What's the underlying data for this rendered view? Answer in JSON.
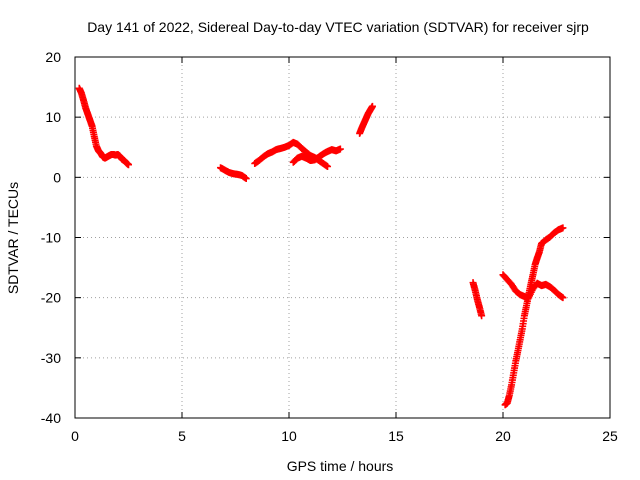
{
  "chart_data": {
    "type": "scatter",
    "title": "Day 141 of 2022, Sidereal Day-to-day VTEC variation (SDTVAR) for receiver sjrp",
    "xlabel": "GPS time / hours",
    "ylabel": "SDTVAR / TECUs",
    "xlim": [
      0,
      25
    ],
    "ylim": [
      -40,
      20
    ],
    "xticks": [
      0,
      5,
      10,
      15,
      20,
      25
    ],
    "yticks": [
      -40,
      -30,
      -20,
      -10,
      0,
      10,
      20
    ],
    "grid": true,
    "marker": "+",
    "color": "#ff0000",
    "series": [
      {
        "x": [
          0.2,
          0.3,
          0.4,
          0.5,
          0.6,
          0.7,
          0.8,
          0.9,
          1.0,
          1.1,
          1.2,
          1.3,
          1.4,
          1.5,
          1.6,
          1.7,
          1.8,
          1.9,
          2.0,
          2.1,
          2.2,
          2.3,
          2.4,
          2.5
        ],
        "y": [
          14.8,
          14.0,
          12.8,
          11.5,
          10.5,
          9.5,
          8.5,
          6.8,
          5.2,
          4.4,
          4.0,
          3.4,
          3.2,
          3.4,
          3.6,
          3.8,
          3.8,
          3.7,
          3.8,
          3.5,
          3.0,
          2.8,
          2.4,
          2.1
        ]
      },
      {
        "x": [
          6.8,
          7.0,
          7.2,
          7.4,
          7.6,
          7.8,
          8.0
        ],
        "y": [
          1.6,
          1.2,
          0.8,
          0.6,
          0.5,
          0.3,
          -0.2
        ]
      },
      {
        "x": [
          8.4,
          8.6,
          8.8,
          9.0,
          9.2,
          9.4,
          9.6,
          9.8,
          10.0,
          10.2,
          10.4,
          10.6,
          10.8,
          11.0,
          11.2,
          11.4,
          11.6,
          11.8
        ],
        "y": [
          2.3,
          2.8,
          3.4,
          3.9,
          4.2,
          4.6,
          4.8,
          5.0,
          5.3,
          5.8,
          5.5,
          4.8,
          4.2,
          3.6,
          3.3,
          2.8,
          2.3,
          1.8
        ]
      },
      {
        "x": [
          10.2,
          10.4,
          10.6,
          10.8,
          11.0,
          11.2,
          11.4,
          11.6,
          11.8,
          12.0,
          12.2,
          12.4
        ],
        "y": [
          2.5,
          3.2,
          3.5,
          3.2,
          2.8,
          2.9,
          3.4,
          3.9,
          4.3,
          4.6,
          4.4,
          4.7
        ]
      },
      {
        "x": [
          13.3,
          13.4,
          13.5,
          13.6,
          13.7,
          13.8,
          13.9
        ],
        "y": [
          7.3,
          8.2,
          9.0,
          9.8,
          10.6,
          11.2,
          11.8
        ]
      },
      {
        "x": [
          18.6,
          18.7,
          18.8,
          18.9,
          19.0
        ],
        "y": [
          -17.5,
          -18.8,
          -20.3,
          -21.6,
          -23.0
        ]
      },
      {
        "x": [
          20.0,
          20.2,
          20.4,
          20.6,
          20.8,
          21.0,
          21.2,
          21.4,
          21.6,
          21.8,
          22.0,
          22.2,
          22.4,
          22.6,
          22.8
        ],
        "y": [
          -16.2,
          -17.0,
          -17.8,
          -18.9,
          -19.5,
          -19.8,
          -20.0,
          -18.5,
          -17.6,
          -18.0,
          -17.8,
          -18.2,
          -18.8,
          -19.5,
          -20.0
        ]
      },
      {
        "x": [
          20.1,
          20.2,
          20.3,
          20.4,
          20.5,
          20.6,
          20.7,
          20.8,
          20.9,
          21.0,
          21.1,
          21.2,
          21.3,
          21.4,
          21.5,
          21.6,
          21.7,
          21.8,
          22.0,
          22.2,
          22.4,
          22.6,
          22.8
        ],
        "y": [
          -37.8,
          -37.5,
          -36.2,
          -34.5,
          -32.5,
          -30.5,
          -28.8,
          -27.0,
          -25.2,
          -23.0,
          -21.3,
          -19.5,
          -17.8,
          -16.2,
          -14.5,
          -13.4,
          -12.4,
          -11.0,
          -10.4,
          -9.9,
          -9.2,
          -8.7,
          -8.4
        ]
      }
    ]
  }
}
